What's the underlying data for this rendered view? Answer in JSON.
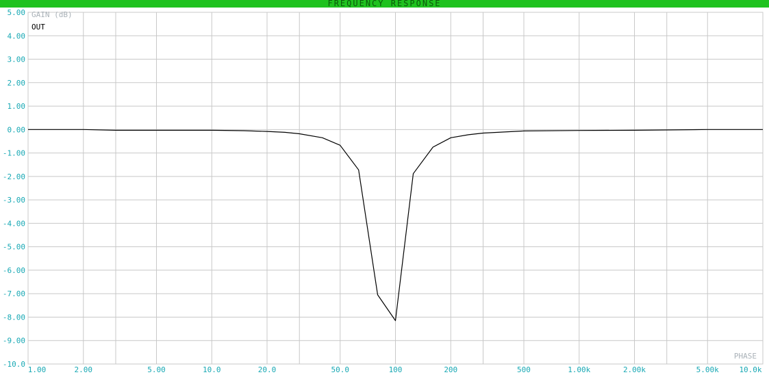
{
  "window": {
    "title": "FREQUENCY RESPONSE"
  },
  "colors": {
    "title_bar": "#1fc21f",
    "title_text": "#0b5a0b",
    "grid": "#c8c8c8",
    "tick_labels": "#17a8b4",
    "trace": "#000000"
  },
  "chart_data": {
    "type": "line",
    "ylabel": "GAIN (dB)",
    "corner_label": "PHASE",
    "x_scale": "log",
    "xlim": [
      1,
      10000
    ],
    "ylim": [
      -10,
      5
    ],
    "grid": true,
    "x_ticks": [
      {
        "value": 1,
        "label": "1.00"
      },
      {
        "value": 2,
        "label": "2.00"
      },
      {
        "value": 5,
        "label": "5.00"
      },
      {
        "value": 10,
        "label": "10.0"
      },
      {
        "value": 20,
        "label": "20.0"
      },
      {
        "value": 50,
        "label": "50.0"
      },
      {
        "value": 100,
        "label": "100"
      },
      {
        "value": 200,
        "label": "200"
      },
      {
        "value": 500,
        "label": "500"
      },
      {
        "value": 1000,
        "label": "1.00k"
      },
      {
        "value": 2000,
        "label": "2.00k"
      },
      {
        "value": 5000,
        "label": "5.00k"
      },
      {
        "value": 10000,
        "label": "10.0k"
      }
    ],
    "y_ticks": [
      {
        "value": 5,
        "label": "5.00"
      },
      {
        "value": 4,
        "label": "4.00"
      },
      {
        "value": 3,
        "label": "3.00"
      },
      {
        "value": 2,
        "label": "2.00"
      },
      {
        "value": 1,
        "label": "1.00"
      },
      {
        "value": 0,
        "label": "0.00"
      },
      {
        "value": -1,
        "label": "-1.00"
      },
      {
        "value": -2,
        "label": "-2.00"
      },
      {
        "value": -3,
        "label": "-3.00"
      },
      {
        "value": -4,
        "label": "-4.00"
      },
      {
        "value": -5,
        "label": "-5.00"
      },
      {
        "value": -6,
        "label": "-6.00"
      },
      {
        "value": -7,
        "label": "-7.00"
      },
      {
        "value": -8,
        "label": "-8.00"
      },
      {
        "value": -9,
        "label": "-9.00"
      },
      {
        "value": -10,
        "label": "-10.0"
      }
    ],
    "series": [
      {
        "name": "OUT",
        "x": [
          1,
          2,
          3,
          5,
          10,
          15,
          20,
          25,
          30,
          40,
          50,
          63,
          80,
          100,
          125,
          160,
          200,
          250,
          300,
          500,
          1000,
          2000,
          5000,
          10000
        ],
        "y": [
          0.0,
          0.0,
          -0.03,
          -0.03,
          -0.03,
          -0.05,
          -0.08,
          -0.12,
          -0.18,
          -0.35,
          -0.67,
          -1.72,
          -7.05,
          -8.15,
          -1.88,
          -0.75,
          -0.35,
          -0.22,
          -0.15,
          -0.06,
          -0.04,
          -0.03,
          0.0,
          0.0
        ]
      }
    ]
  }
}
